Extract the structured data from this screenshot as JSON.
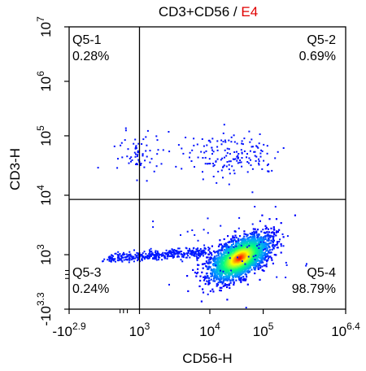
{
  "chart_data": {
    "type": "scatter",
    "title_main": "CD3+CD56 / ",
    "title_sample": "E4",
    "xlabel": "CD56-H",
    "ylabel": "CD3-H",
    "x_scale": "biexponential-log",
    "y_scale": "biexponential-log",
    "xlim": [
      -794,
      2511886
    ],
    "ylim": [
      -1995,
      10000000
    ],
    "x_ticks": [
      {
        "value": -794,
        "base": "-10",
        "exp": "2.9"
      },
      {
        "value": 1000,
        "base": "10",
        "exp": "3"
      },
      {
        "value": 10000,
        "base": "10",
        "exp": "4"
      },
      {
        "value": 100000,
        "base": "10",
        "exp": "5"
      },
      {
        "value": 2511886,
        "base": "10",
        "exp": "6.4"
      }
    ],
    "y_ticks": [
      {
        "value": -1995,
        "base": "-10",
        "exp": "3.3"
      },
      {
        "value": 1000,
        "base": "10",
        "exp": "3"
      },
      {
        "value": 10000,
        "base": "10",
        "exp": "4"
      },
      {
        "value": 100000,
        "base": "10",
        "exp": "5"
      },
      {
        "value": 1000000,
        "base": "10",
        "exp": "6"
      },
      {
        "value": 10000000,
        "base": "10",
        "exp": "7"
      }
    ],
    "gate": {
      "x": 1000,
      "y": 8500
    },
    "quadrants": [
      {
        "name": "Q5-1",
        "percent": "0.28%",
        "position": "top-left"
      },
      {
        "name": "Q5-2",
        "percent": "0.69%",
        "position": "top-right"
      },
      {
        "name": "Q5-3",
        "percent": "0.24%",
        "position": "bottom-left"
      },
      {
        "name": "Q5-4",
        "percent": "98.79%",
        "position": "bottom-right"
      }
    ],
    "populations": [
      {
        "label": "CD3+CD56+ cluster",
        "center_x": 25000,
        "center_y": 50000,
        "approx_events": 160
      },
      {
        "label": "CD3+CD56- cluster",
        "center_x": 600,
        "center_y": 50000,
        "approx_events": 70
      },
      {
        "label": "CD3-CD56+ main cluster",
        "center_x": 40000,
        "center_y": 800,
        "approx_events": 2600
      },
      {
        "label": "CD3-CD56- tail",
        "center_x": 200,
        "center_y": 450,
        "approx_events": 400
      }
    ],
    "colormap": [
      "#0000ff",
      "#00a0ff",
      "#00ff80",
      "#ffff00",
      "#ff0000"
    ]
  }
}
